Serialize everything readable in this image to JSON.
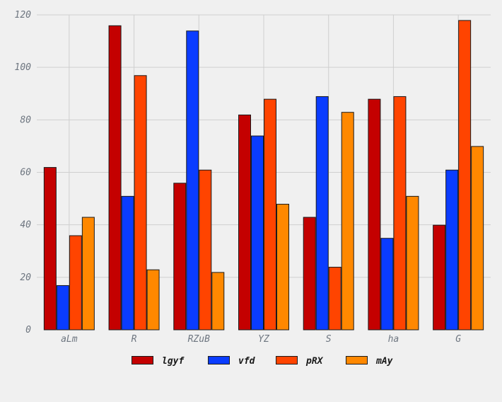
{
  "chart_data": {
    "type": "bar",
    "categories": [
      "aLm",
      "R",
      "RZuB",
      "YZ",
      "S",
      "ha",
      "G"
    ],
    "series": [
      {
        "name": "lgyf",
        "color": "#c40000",
        "values": [
          62,
          116,
          56,
          82,
          43,
          88,
          40
        ]
      },
      {
        "name": "vfd",
        "color": "#0a3cff",
        "values": [
          17,
          51,
          114,
          74,
          89,
          35,
          61
        ]
      },
      {
        "name": "pRX",
        "color": "#ff4400",
        "values": [
          36,
          97,
          61,
          88,
          24,
          89,
          118
        ]
      },
      {
        "name": "mAy",
        "color": "#ff8800",
        "values": [
          43,
          23,
          22,
          48,
          83,
          51,
          70
        ]
      }
    ],
    "title": "",
    "xlabel": "",
    "ylabel": "",
    "ylim": [
      0,
      120
    ],
    "yticks": [
      0,
      20,
      40,
      60,
      80,
      100,
      120
    ],
    "grid": true,
    "legend_position": "bottom"
  }
}
